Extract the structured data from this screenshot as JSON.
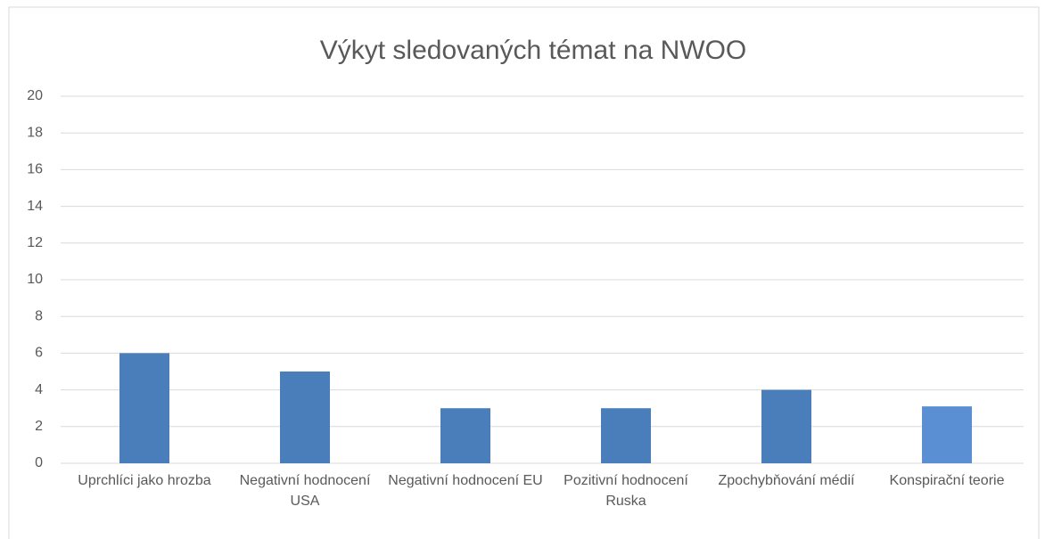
{
  "chart_data": {
    "type": "bar",
    "title": "Výkyt sledovaných témat na NWOO",
    "categories": [
      "Uprchlíci jako hrozba",
      "Negativní hodnocení USA",
      "Negativní hodnocení EU",
      "Pozitivní hodnocení Ruska",
      "Zpochybňování médií",
      "Konspirační teorie"
    ],
    "values": [
      6,
      5,
      3,
      3,
      4,
      3.1
    ],
    "colors": [
      "#4a7ebb",
      "#4a7ebb",
      "#4a7ebb",
      "#4a7ebb",
      "#4a7ebb",
      "#5a8fd4"
    ],
    "ylim": [
      0,
      20
    ],
    "yticks": [
      0,
      2,
      4,
      6,
      8,
      10,
      12,
      14,
      16,
      18,
      20
    ],
    "grid": true
  }
}
